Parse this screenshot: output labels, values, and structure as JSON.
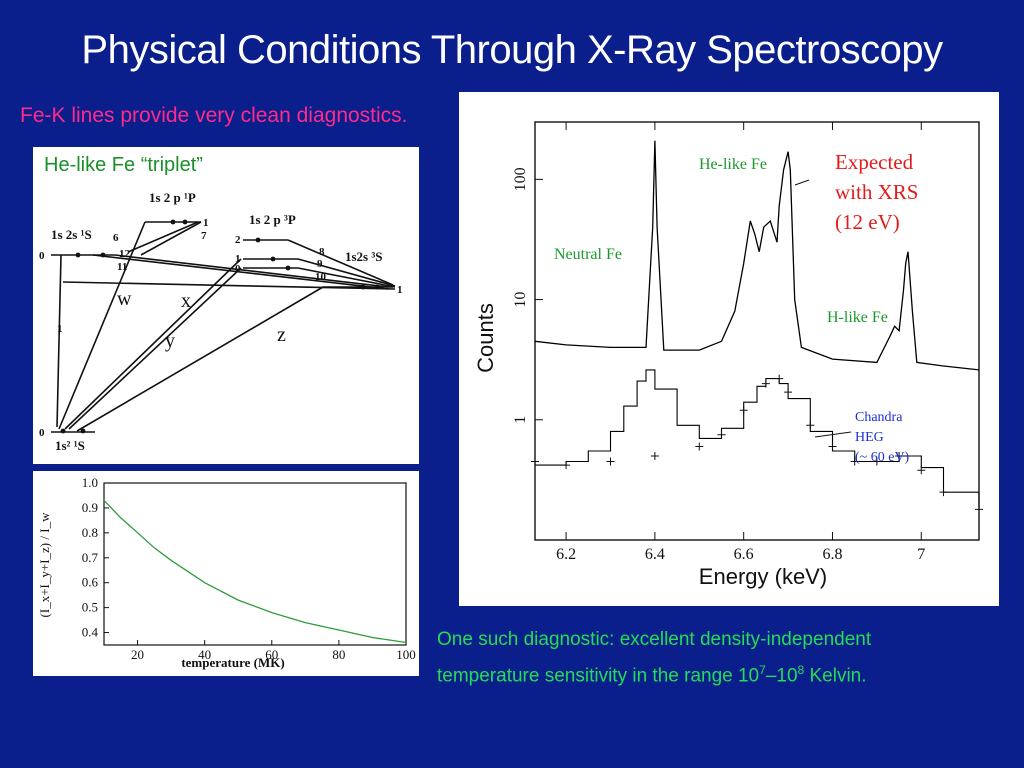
{
  "slide": {
    "title": "Physical Conditions Through X-Ray Spectroscopy",
    "subtitle": "Fe-K lines provide very clean diagnostics.",
    "caption_line1": "One such diagnostic: excellent density-independent",
    "caption_line2_prefix": "temperature sensitivity in the range 10",
    "caption_sup1": "7",
    "caption_mid": "–10",
    "caption_sup2": "8",
    "caption_suffix": " Kelvin."
  },
  "triplet_diagram": {
    "heading": "He-like Fe “triplet”",
    "levels": {
      "top_singlet": "1s 2 p ¹P",
      "triplet_p": "1s 2 p ³P",
      "singlet_s": "1s 2s ¹S",
      "triplet_s": "1s2s ³S",
      "ground": "1s² ¹S"
    },
    "level_numbers": [
      "1",
      "6",
      "7",
      "2",
      "1",
      "0",
      "8",
      "9",
      "10",
      "12",
      "11",
      "0",
      "1",
      "1",
      "0"
    ],
    "line_labels": [
      "w",
      "x",
      "y",
      "z"
    ]
  },
  "chart_data": [
    {
      "type": "line",
      "title": "",
      "xlabel": "temperature (MK)",
      "ylabel": "(I_x+I_y+I_z) / I_w",
      "xlim": [
        10,
        100
      ],
      "ylim": [
        0.35,
        1.0
      ],
      "xticks": [
        20,
        40,
        60,
        80,
        100
      ],
      "yticks": [
        0.4,
        0.5,
        0.6,
        0.7,
        0.8,
        0.9,
        1.0
      ],
      "series": [
        {
          "color": "#2e9c3a",
          "x": [
            10,
            15,
            20,
            25,
            30,
            40,
            50,
            60,
            70,
            80,
            90,
            100
          ],
          "y": [
            0.93,
            0.86,
            0.8,
            0.74,
            0.69,
            0.6,
            0.53,
            0.48,
            0.44,
            0.41,
            0.38,
            0.36
          ]
        }
      ]
    },
    {
      "type": "line",
      "title": "",
      "xlabel": "Energy  (keV)",
      "ylabel": "Counts",
      "xlim": [
        6.13,
        7.13
      ],
      "ylim_log": [
        0.1,
        300
      ],
      "xticks": [
        "6.2",
        "6.4",
        "6.6",
        "6.8",
        "7"
      ],
      "yticks": [
        "1",
        "10",
        "100"
      ],
      "yscale": "log",
      "series": [
        {
          "x": [
            6.13,
            6.2,
            6.3,
            6.38,
            6.395,
            6.4,
            6.405,
            6.42,
            6.5,
            6.55,
            6.58,
            6.6,
            6.615,
            6.625,
            6.635,
            6.645,
            6.66,
            6.675,
            6.68,
            6.69,
            6.7,
            6.705,
            6.715,
            6.73,
            6.8,
            6.9,
            6.93,
            6.94,
            6.95,
            6.96,
            6.965,
            6.97,
            6.98,
            6.99,
            7.05,
            7.13
          ],
          "y": [
            4.5,
            4.2,
            4.0,
            4.0,
            40,
            210,
            40,
            3.8,
            3.8,
            4.5,
            8,
            20,
            45,
            35,
            25,
            40,
            45,
            30,
            60,
            120,
            170,
            120,
            10,
            4.0,
            3.2,
            3.0,
            5.0,
            6.0,
            5.5,
            12,
            20,
            25,
            8,
            3.0,
            2.8,
            2.6
          ]
        },
        {
          "x": [
            6.13,
            6.2,
            6.25,
            6.3,
            6.33,
            6.36,
            6.38,
            6.4,
            6.45,
            6.5,
            6.55,
            6.6,
            6.63,
            6.65,
            6.68,
            6.7,
            6.75,
            6.8,
            6.85,
            6.9,
            6.95,
            7.0,
            7.05,
            7.13
          ],
          "y": [
            0.42,
            0.45,
            0.55,
            0.8,
            1.3,
            2.1,
            2.6,
            1.8,
            0.9,
            0.7,
            0.85,
            1.4,
            1.9,
            2.2,
            2.0,
            1.5,
            0.8,
            0.55,
            0.45,
            0.45,
            0.5,
            0.4,
            0.25,
            0.18
          ]
        },
        {
          "x": [
            6.13,
            6.2,
            6.3,
            6.4,
            6.5,
            6.55,
            6.6,
            6.65,
            6.68,
            6.7,
            6.75,
            6.8,
            6.85,
            6.9,
            6.95,
            7.0,
            7.05,
            7.13
          ],
          "y": [
            0.45,
            0.42,
            0.45,
            0.5,
            0.6,
            0.75,
            1.2,
            2.0,
            2.2,
            1.7,
            0.9,
            0.6,
            0.45,
            0.45,
            0.5,
            0.38,
            0.25,
            0.18
          ]
        }
      ],
      "annotations": [
        {
          "text": "Neutral Fe",
          "color": "#1a9a2e"
        },
        {
          "text": "He-like Fe",
          "color": "#1a9a2e"
        },
        {
          "text": "H-like Fe",
          "color": "#1a9a2e"
        },
        {
          "text": "Expected",
          "color": "#e51b1b"
        },
        {
          "text": "with XRS",
          "color": "#e51b1b"
        },
        {
          "text": "(12 eV)",
          "color": "#e51b1b"
        },
        {
          "text": "Chandra",
          "color": "#1c2fd6"
        },
        {
          "text": "HEG",
          "color": "#1c2fd6"
        },
        {
          "text": "(~ 60 eV)",
          "color": "#1c2fd6"
        }
      ]
    }
  ]
}
